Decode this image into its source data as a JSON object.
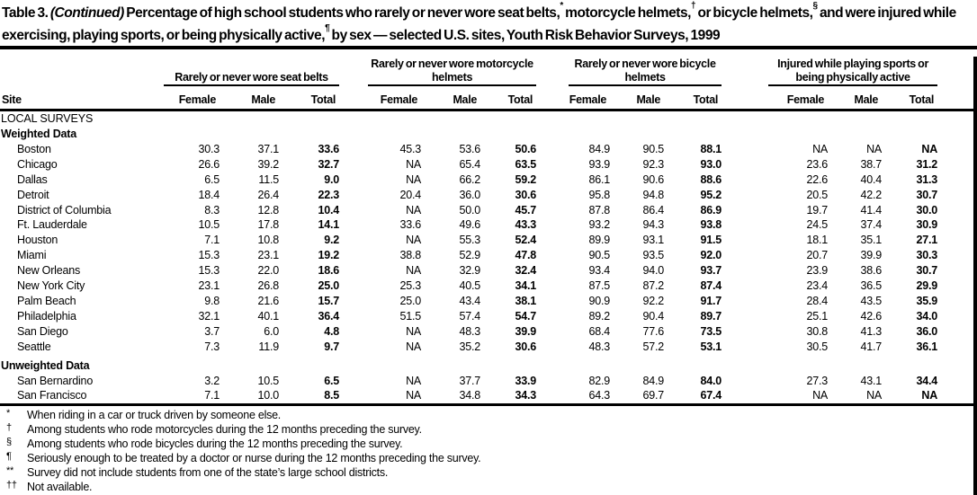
{
  "title": {
    "table_label": "Table 3.",
    "continued": "(Continued)",
    "seg1": "Percentage of high school students who rarely or never wore seat belts,",
    "sup1": "*",
    "seg2": "motorcycle helmets,",
    "sup2": "†",
    "seg3": "or bicycle helmets,",
    "sup3": "§",
    "seg4": "and were injured while exercising, playing sports, or being physically active,",
    "sup4": "¶",
    "seg5": "by sex — selected U.S. sites, Youth Risk Behavior Surveys, 1999"
  },
  "header": {
    "site_label": "Site",
    "groups": [
      {
        "label": "Rarely or never wore seat belts"
      },
      {
        "label": "Rarely or never wore motorcycle helmets"
      },
      {
        "label": "Rarely or never wore bicycle helmets"
      },
      {
        "label": "Injured while playing sports or being physically active"
      }
    ],
    "sub_columns": [
      "Female",
      "Male",
      "Total"
    ]
  },
  "rows": [
    {
      "type": "section",
      "label": "LOCAL SURVEYS"
    },
    {
      "type": "subsection",
      "label": "Weighted Data"
    },
    {
      "type": "data",
      "site": "Boston",
      "values": [
        "30.3",
        "37.1",
        "33.6",
        "45.3",
        "53.6",
        "50.6",
        "84.9",
        "90.5",
        "88.1",
        "NA",
        "NA",
        "NA"
      ]
    },
    {
      "type": "data",
      "site": "Chicago",
      "values": [
        "26.6",
        "39.2",
        "32.7",
        "NA",
        "65.4",
        "63.5",
        "93.9",
        "92.3",
        "93.0",
        "23.6",
        "38.7",
        "31.2"
      ]
    },
    {
      "type": "data",
      "site": "Dallas",
      "values": [
        "6.5",
        "11.5",
        "9.0",
        "NA",
        "66.2",
        "59.2",
        "86.1",
        "90.6",
        "88.6",
        "22.6",
        "40.4",
        "31.3"
      ]
    },
    {
      "type": "data",
      "site": "Detroit",
      "values": [
        "18.4",
        "26.4",
        "22.3",
        "20.4",
        "36.0",
        "30.6",
        "95.8",
        "94.8",
        "95.2",
        "20.5",
        "42.2",
        "30.7"
      ]
    },
    {
      "type": "data",
      "site": "District of Columbia",
      "values": [
        "8.3",
        "12.8",
        "10.4",
        "NA",
        "50.0",
        "45.7",
        "87.8",
        "86.4",
        "86.9",
        "19.7",
        "41.4",
        "30.0"
      ]
    },
    {
      "type": "data",
      "site": "Ft. Lauderdale",
      "values": [
        "10.5",
        "17.8",
        "14.1",
        "33.6",
        "49.6",
        "43.3",
        "93.2",
        "94.3",
        "93.8",
        "24.5",
        "37.4",
        "30.9"
      ]
    },
    {
      "type": "data",
      "site": "Houston",
      "values": [
        "7.1",
        "10.8",
        "9.2",
        "NA",
        "55.3",
        "52.4",
        "89.9",
        "93.1",
        "91.5",
        "18.1",
        "35.1",
        "27.1"
      ]
    },
    {
      "type": "data",
      "site": "Miami",
      "values": [
        "15.3",
        "23.1",
        "19.2",
        "38.8",
        "52.9",
        "47.8",
        "90.5",
        "93.5",
        "92.0",
        "20.7",
        "39.9",
        "30.3"
      ]
    },
    {
      "type": "data",
      "site": "New Orleans",
      "values": [
        "15.3",
        "22.0",
        "18.6",
        "NA",
        "32.9",
        "32.4",
        "93.4",
        "94.0",
        "93.7",
        "23.9",
        "38.6",
        "30.7"
      ]
    },
    {
      "type": "data",
      "site": "New York City",
      "values": [
        "23.1",
        "26.8",
        "25.0",
        "25.3",
        "40.5",
        "34.1",
        "87.5",
        "87.2",
        "87.4",
        "23.4",
        "36.5",
        "29.9"
      ]
    },
    {
      "type": "data",
      "site": "Palm Beach",
      "values": [
        "9.8",
        "21.6",
        "15.7",
        "25.0",
        "43.4",
        "38.1",
        "90.9",
        "92.2",
        "91.7",
        "28.4",
        "43.5",
        "35.9"
      ]
    },
    {
      "type": "data",
      "site": "Philadelphia",
      "values": [
        "32.1",
        "40.1",
        "36.4",
        "51.5",
        "57.4",
        "54.7",
        "89.2",
        "90.4",
        "89.7",
        "25.1",
        "42.6",
        "34.0"
      ]
    },
    {
      "type": "data",
      "site": "San Diego",
      "values": [
        "3.7",
        "6.0",
        "4.8",
        "NA",
        "48.3",
        "39.9",
        "68.4",
        "77.6",
        "73.5",
        "30.8",
        "41.3",
        "36.0"
      ]
    },
    {
      "type": "data",
      "site": "Seattle",
      "values": [
        "7.3",
        "11.9",
        "9.7",
        "NA",
        "35.2",
        "30.6",
        "48.3",
        "57.2",
        "53.1",
        "30.5",
        "41.7",
        "36.1"
      ]
    },
    {
      "type": "subsection",
      "label": "Unweighted Data"
    },
    {
      "type": "data",
      "site": "San Bernardino",
      "values": [
        "3.2",
        "10.5",
        "6.5",
        "NA",
        "37.7",
        "33.9",
        "82.9",
        "84.9",
        "84.0",
        "27.3",
        "43.1",
        "34.4"
      ]
    },
    {
      "type": "data",
      "site": "San Francisco",
      "values": [
        "7.1",
        "10.0",
        "8.5",
        "NA",
        "34.8",
        "34.3",
        "64.3",
        "69.7",
        "67.4",
        "NA",
        "NA",
        "NA"
      ]
    }
  ],
  "footnotes": [
    {
      "marker": "*",
      "text": "When riding in a car or truck driven by someone else."
    },
    {
      "marker": "†",
      "text": "Among students who rode motorcycles during the 12 months preceding the survey."
    },
    {
      "marker": "§",
      "text": "Among students who rode bicycles during the 12 months preceding the survey."
    },
    {
      "marker": "¶",
      "text": "Seriously enough to be treated by a doctor or nurse during the 12 months preceding the survey."
    },
    {
      "marker": "**",
      "text": "Survey did not include students from one of the state’s large school districts."
    },
    {
      "marker": "††",
      "text": "Not available."
    }
  ],
  "colors": {
    "ink": "#000000",
    "background": "#ffffff"
  }
}
